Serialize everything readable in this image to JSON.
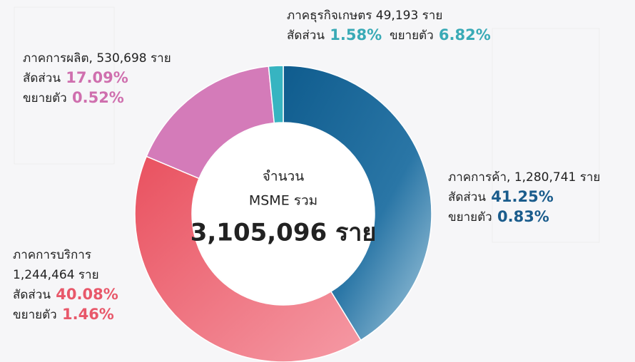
{
  "chart_data": {
    "type": "pie",
    "donut": true,
    "center_text": [
      "จำนวน",
      "MSME รวม",
      "3,105,096 ราย"
    ],
    "categories": [
      "ภาคการค้า,",
      "ภาคการบริการ",
      "ภาคการผลิต,",
      "ภาคธุรกิจเกษตร"
    ],
    "count_labels": [
      "1,280,741 ราย",
      "1,244,464 ราย",
      "530,698 ราย",
      "49,193 ราย"
    ],
    "share_word": "สัดส่วน",
    "growth_word": "ขยายตัว",
    "series": [
      {
        "values": [
          41.25,
          40.08,
          17.09,
          1.58
        ],
        "value_labels": [
          "41.25%",
          "40.08%",
          "17.09%",
          "1.58%"
        ],
        "colors": [
          "#1b6a9c",
          "#ec5b6c",
          "#d47bb9",
          "#37b4c1"
        ],
        "label_colors": [
          "#1a5c8c",
          "#e8586a",
          "#cf6fae",
          "#39aab6"
        ]
      }
    ],
    "growth": [
      0.83,
      1.46,
      0.52,
      6.82
    ],
    "growth_labels": [
      "0.83%",
      "1.46%",
      "0.52%",
      "6.82%"
    ]
  }
}
